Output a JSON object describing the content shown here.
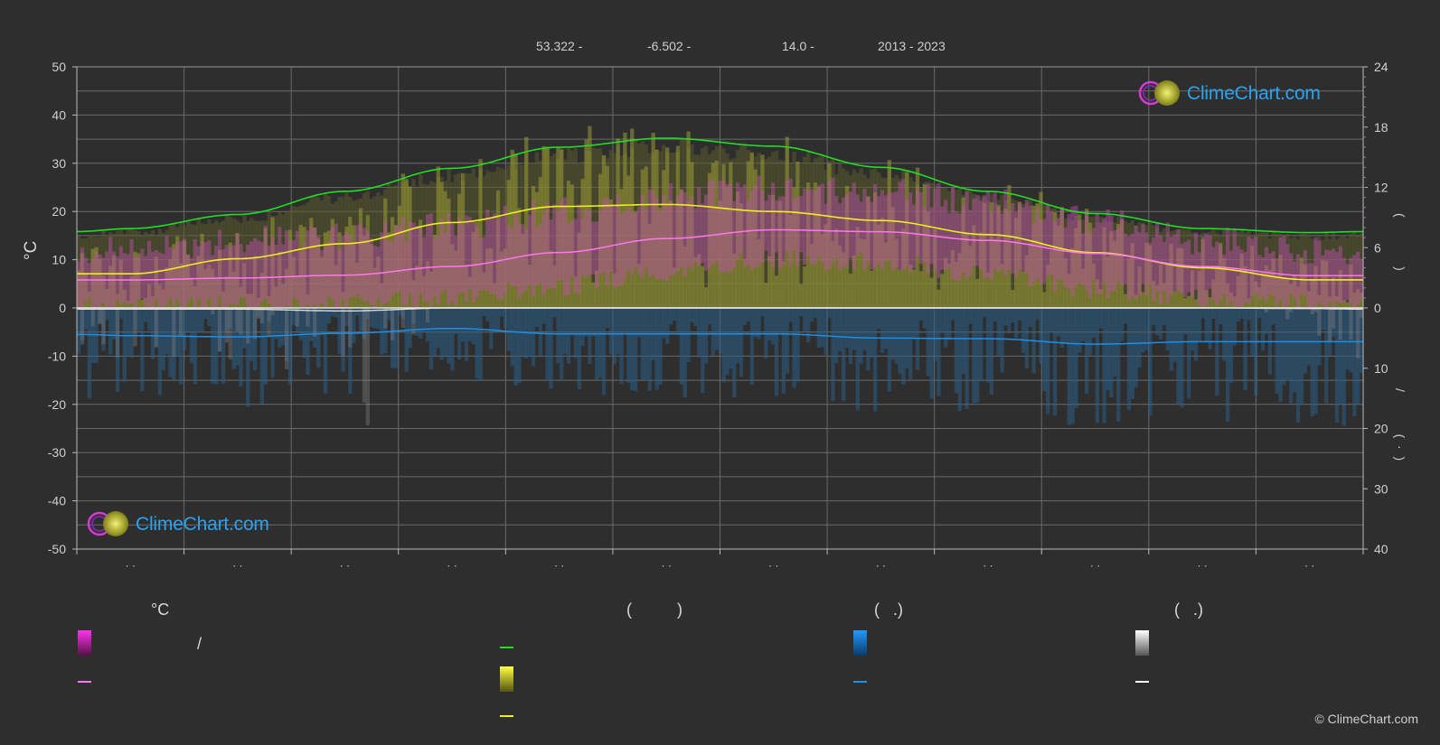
{
  "header": {
    "latitude": "53.322 -",
    "longitude": "-6.502 -",
    "elevation": "14.0 -",
    "years": "2013 - 2023"
  },
  "brand": {
    "name": "ClimeChart.com",
    "copyright": "© ClimeChart.com"
  },
  "legend": {
    "temp_unit": "°C",
    "col2_paren": "(          )",
    "col3_paren": "(   .)",
    "col4_paren": "(   .)",
    "slash": "/"
  },
  "colors": {
    "background": "#2e2e2e",
    "daylight": "#22dd22",
    "sunshine": "#eeee22",
    "temp_mean": "#ff77ee",
    "temp_band": "#dd44cc",
    "rain": "#1e8fe6",
    "snow": "#ffffff",
    "brand": "#29a3f0"
  },
  "chart_data": {
    "type": "line",
    "title": "",
    "xlabel": "",
    "ylabel": "°C",
    "ylim": [
      -50,
      50
    ],
    "yticks": [
      -50,
      -40,
      -30,
      -20,
      -10,
      0,
      10,
      20,
      30,
      40,
      50
    ],
    "right_axis_top": {
      "ticks": [
        0,
        6,
        12,
        18,
        24
      ],
      "range": [
        0,
        24
      ]
    },
    "right_axis_bottom": {
      "ticks": [
        0,
        10,
        20,
        30,
        40
      ],
      "range": [
        0,
        40
      ]
    },
    "x_months": 12,
    "x_tick_labels": [
      "· ·",
      "· ·",
      "· ·",
      "· ·",
      "· ·",
      "· ·",
      "· ·",
      "· ·",
      "· ·",
      "· ·",
      "· ·",
      "· ·"
    ],
    "grid": true,
    "series": [
      {
        "key": "daylight",
        "axis": "hours",
        "x": [
          0,
          0.5,
          1.5,
          2.5,
          3.5,
          4.5,
          5.5,
          6.5,
          7.5,
          8.5,
          9.5,
          10.5,
          11.5,
          12
        ],
        "values": [
          7.6,
          7.9,
          9.3,
          11.6,
          13.9,
          16.0,
          16.9,
          16.1,
          14.0,
          11.6,
          9.4,
          7.9,
          7.5,
          7.6
        ]
      },
      {
        "key": "sunshine",
        "axis": "hours",
        "x": [
          0,
          0.5,
          1.5,
          2.5,
          3.5,
          4.5,
          5.5,
          6.5,
          7.5,
          8.5,
          9.5,
          10.5,
          11.5,
          12
        ],
        "values": [
          3.4,
          3.4,
          4.9,
          6.4,
          8.5,
          10.1,
          10.3,
          9.6,
          8.7,
          7.3,
          5.5,
          4.0,
          2.8,
          2.8
        ]
      },
      {
        "key": "temp_mean",
        "axis": "temperature",
        "x": [
          0,
          0.5,
          1.5,
          2.5,
          3.5,
          4.5,
          5.5,
          6.5,
          7.5,
          8.5,
          9.5,
          10.5,
          11.5,
          12
        ],
        "values": [
          5.8,
          5.8,
          6.2,
          6.8,
          8.6,
          11.5,
          14.4,
          16.2,
          15.8,
          14.0,
          11.3,
          8.6,
          6.7,
          6.7
        ]
      },
      {
        "key": "temp_band_max",
        "axis": "temperature",
        "x": [
          0,
          0.5,
          1.5,
          2.5,
          3.5,
          4.5,
          5.5,
          6.5,
          7.5,
          8.5,
          9.5,
          10.5,
          11.5,
          12
        ],
        "values": [
          12.0,
          12.0,
          14.0,
          14.5,
          17.0,
          20.0,
          23.0,
          25.0,
          24.0,
          22.0,
          18.0,
          14.0,
          12.0,
          12.0
        ]
      },
      {
        "key": "temp_band_min",
        "axis": "temperature",
        "x": [
          0,
          0.5,
          1.5,
          2.5,
          3.5,
          4.5,
          5.5,
          6.5,
          7.5,
          8.5,
          9.5,
          10.5,
          11.5,
          12
        ],
        "values": [
          0.5,
          0.5,
          0.5,
          1.0,
          2.0,
          4.5,
          7.5,
          10.0,
          9.5,
          7.0,
          4.0,
          2.0,
          1.0,
          0.5
        ]
      },
      {
        "key": "rain",
        "axis": "precip",
        "x": [
          0,
          0.5,
          1.5,
          2.5,
          3.5,
          4.5,
          5.5,
          6.5,
          7.5,
          8.5,
          9.5,
          10.5,
          11.5,
          12
        ],
        "values": [
          4.4,
          4.6,
          4.8,
          4.2,
          3.4,
          4.3,
          4.3,
          4.3,
          5.0,
          5.1,
          6.0,
          5.6,
          5.6,
          5.6
        ]
      },
      {
        "key": "snow",
        "axis": "precip",
        "x": [
          0,
          0.5,
          1.5,
          2.5,
          3.5,
          4.5,
          5.5,
          6.5,
          7.5,
          8.5,
          9.5,
          10.5,
          11.5,
          12
        ],
        "values": [
          0.2,
          0.2,
          0.2,
          0.5,
          0.0,
          0.0,
          0.0,
          0.0,
          0.0,
          0.0,
          0.0,
          0.0,
          0.1,
          0.2
        ]
      }
    ]
  }
}
